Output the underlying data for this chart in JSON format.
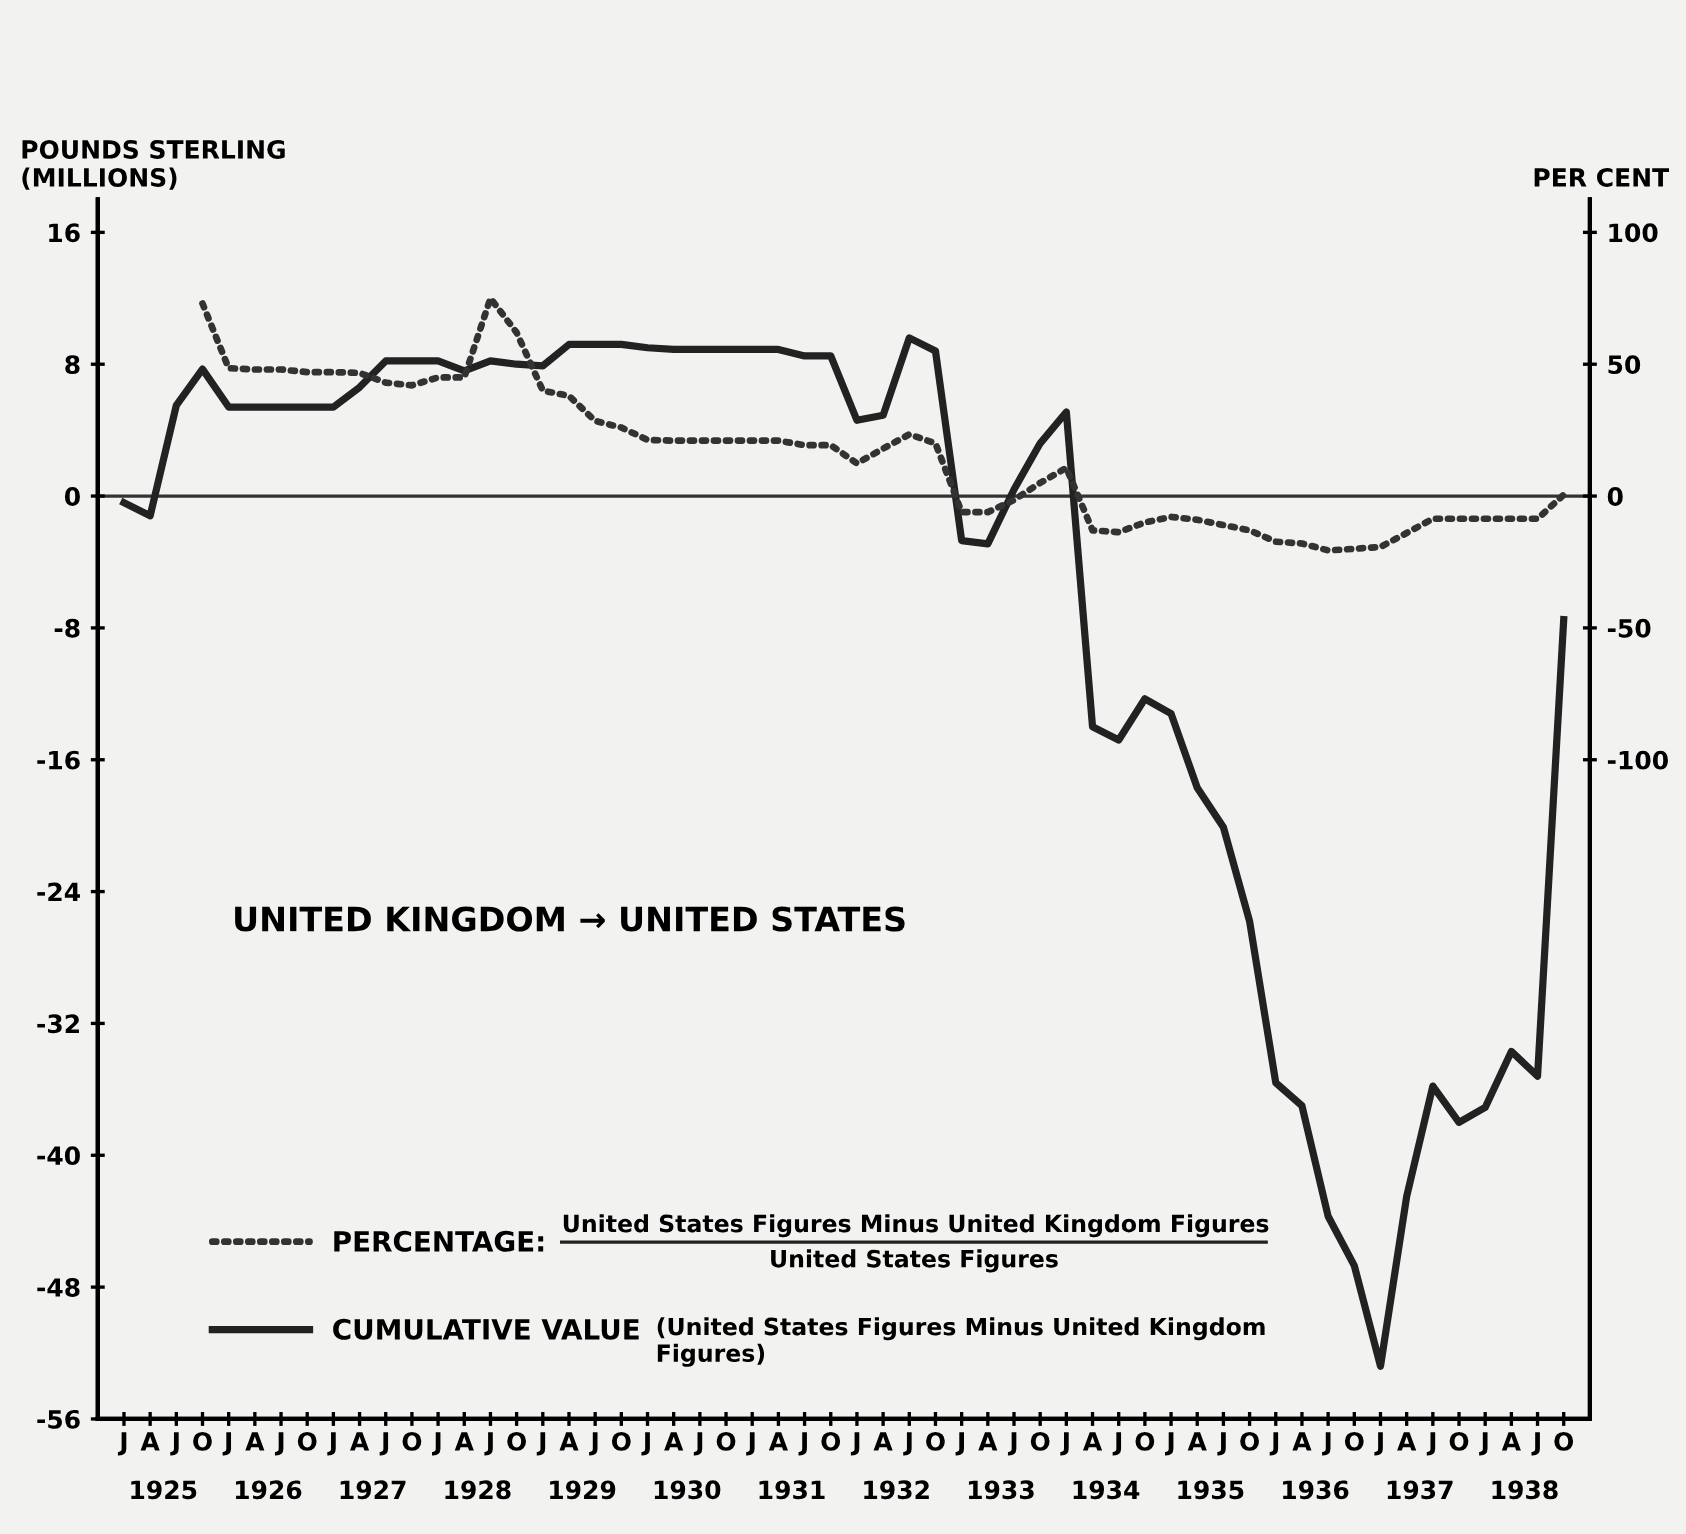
{
  "chart_data": {
    "type": "line",
    "ylabel": "POUNDS STERLING\n(MILLIONS)",
    "y2label": "PER CENT",
    "annotations": [
      "UNITED KINGDOM → UNITED STATES",
      "United States Figures Minus United Kingdom Figures",
      "United States Figures",
      "(United States Figures Minus United Kingdom\nFigures)",
      "1925",
      "1926",
      "1927",
      "1928",
      "1929",
      "1930",
      "1931",
      "1932",
      "1933",
      "1934",
      "1935",
      "1936",
      "1937",
      "1938"
    ],
    "categories": [
      "J",
      "A",
      "J",
      "O",
      "J",
      "A",
      "J",
      "O",
      "J",
      "A",
      "J",
      "O",
      "J",
      "A",
      "J",
      "O",
      "J",
      "A",
      "J",
      "O",
      "J",
      "A",
      "J",
      "O",
      "J",
      "A",
      "J",
      "O",
      "J",
      "A",
      "J",
      "O",
      "J",
      "A",
      "J",
      "O",
      "J",
      "A",
      "J",
      "O",
      "J",
      "A",
      "J",
      "O",
      "J",
      "A",
      "J",
      "O",
      "J",
      "A",
      "J",
      "O",
      "J",
      "A",
      "J",
      "O"
    ],
    "ylim": [
      -56,
      18
    ],
    "y2lim": [
      -350,
      112.5
    ],
    "yticks": [
      -56,
      -48,
      -40,
      -32,
      -24,
      -16,
      -8,
      0,
      8,
      16
    ],
    "y2ticks": [
      -100,
      -50,
      0,
      50,
      100
    ],
    "ref_lines": [
      {
        "axis": "y",
        "value": 0,
        "color": "#333333"
      }
    ],
    "grid": false,
    "legend": "bottom left",
    "series": [
      {
        "name": "PERCENTAGE:",
        "color": "#333333",
        "axis": "y2",
        "line_style": "dotted",
        "values": [
          null,
          null,
          null,
          73,
          48.5,
          48,
          48,
          47,
          47,
          46.7,
          43,
          42,
          45,
          45,
          75,
          62,
          40,
          38,
          28.5,
          26,
          21.3,
          21,
          21,
          21,
          21,
          21,
          19.3,
          19.3,
          12.4,
          18,
          23.4,
          20,
          -6.1,
          -6.1,
          -1.5,
          5,
          10.7,
          -13,
          -13.7,
          -10,
          -7.9,
          -9,
          -11,
          -13,
          -17.3,
          -18,
          -20.6,
          -20,
          -19.3,
          -14,
          -8.6,
          -8.6,
          -8.6,
          -8.6,
          -8.6,
          0.5
        ]
      },
      {
        "name": "CUMULATIVE VALUE",
        "color": "#222222",
        "line_style": "solid",
        "values": [
          -0.4,
          -1.2,
          5.5,
          7.7,
          5.4,
          5.4,
          5.4,
          5.4,
          5.4,
          6.6,
          8.2,
          8.2,
          8.2,
          7.6,
          8.2,
          8.0,
          7.9,
          9.2,
          9.2,
          9.2,
          9.0,
          8.9,
          8.9,
          8.9,
          8.9,
          8.9,
          8.5,
          8.5,
          4.6,
          4.9,
          9.6,
          8.8,
          -2.7,
          -2.9,
          0.4,
          3.2,
          5.1,
          -14.0,
          -14.8,
          -12.3,
          -13.2,
          -17.7,
          -20.1,
          -25.8,
          -35.6,
          -37.0,
          -43.7,
          -46.7,
          -52.8,
          -42.5,
          -35.8,
          -38.0,
          -37.1,
          -33.7,
          -35.2,
          -7.5
        ]
      }
    ]
  }
}
